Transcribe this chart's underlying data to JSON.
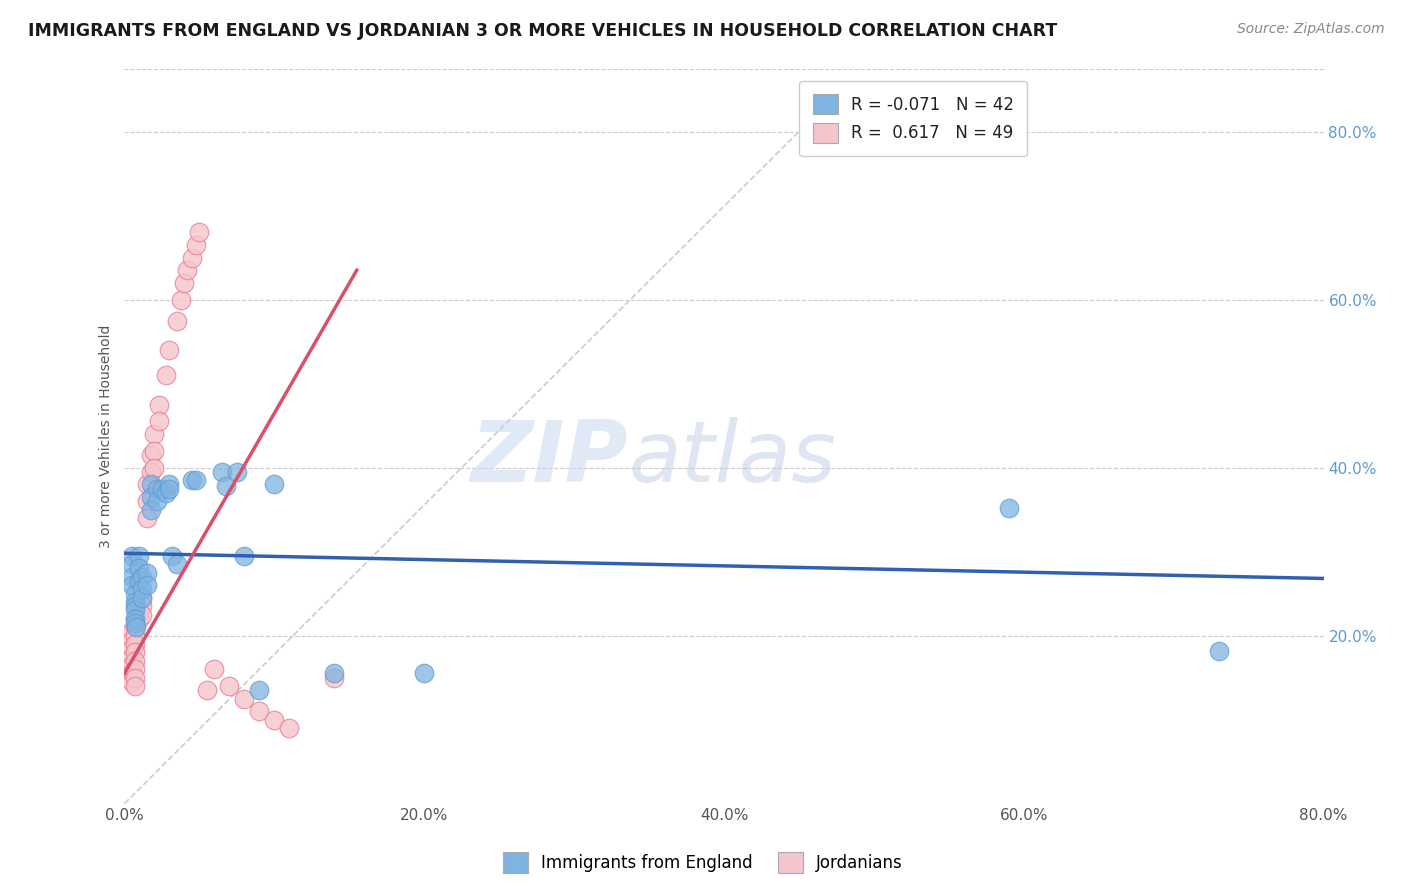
{
  "title": "IMMIGRANTS FROM ENGLAND VS JORDANIAN 3 OR MORE VEHICLES IN HOUSEHOLD CORRELATION CHART",
  "source": "Source: ZipAtlas.com",
  "ylabel": "3 or more Vehicles in Household",
  "xlim": [
    0.0,
    0.8
  ],
  "ylim": [
    0.0,
    0.875
  ],
  "xtick_labels": [
    "0.0%",
    "20.0%",
    "40.0%",
    "60.0%",
    "80.0%"
  ],
  "xtick_vals": [
    0.0,
    0.2,
    0.4,
    0.6,
    0.8
  ],
  "ytick_labels": [
    "20.0%",
    "40.0%",
    "60.0%",
    "80.0%"
  ],
  "ytick_vals": [
    0.2,
    0.4,
    0.6,
    0.8
  ],
  "legend_label1": "R = -0.071   N = 42",
  "legend_label2": "R =  0.617   N = 49",
  "england_scatter": [
    [
      0.005,
      0.295
    ],
    [
      0.005,
      0.285
    ],
    [
      0.005,
      0.27
    ],
    [
      0.005,
      0.26
    ],
    [
      0.007,
      0.25
    ],
    [
      0.007,
      0.24
    ],
    [
      0.007,
      0.235
    ],
    [
      0.007,
      0.23
    ],
    [
      0.007,
      0.22
    ],
    [
      0.007,
      0.215
    ],
    [
      0.008,
      0.21
    ],
    [
      0.01,
      0.295
    ],
    [
      0.01,
      0.28
    ],
    [
      0.01,
      0.265
    ],
    [
      0.012,
      0.27
    ],
    [
      0.012,
      0.255
    ],
    [
      0.012,
      0.245
    ],
    [
      0.015,
      0.275
    ],
    [
      0.015,
      0.26
    ],
    [
      0.018,
      0.38
    ],
    [
      0.018,
      0.365
    ],
    [
      0.018,
      0.35
    ],
    [
      0.022,
      0.375
    ],
    [
      0.022,
      0.36
    ],
    [
      0.025,
      0.375
    ],
    [
      0.028,
      0.37
    ],
    [
      0.03,
      0.38
    ],
    [
      0.03,
      0.375
    ],
    [
      0.032,
      0.295
    ],
    [
      0.035,
      0.285
    ],
    [
      0.045,
      0.385
    ],
    [
      0.048,
      0.385
    ],
    [
      0.065,
      0.395
    ],
    [
      0.068,
      0.378
    ],
    [
      0.075,
      0.395
    ],
    [
      0.08,
      0.295
    ],
    [
      0.09,
      0.135
    ],
    [
      0.1,
      0.38
    ],
    [
      0.14,
      0.155
    ],
    [
      0.2,
      0.155
    ],
    [
      0.59,
      0.352
    ],
    [
      0.73,
      0.182
    ]
  ],
  "england_line_x": [
    0.0,
    0.8
  ],
  "england_line_y": [
    0.298,
    0.268
  ],
  "jordan_scatter": [
    [
      0.005,
      0.205
    ],
    [
      0.005,
      0.195
    ],
    [
      0.005,
      0.185
    ],
    [
      0.005,
      0.175
    ],
    [
      0.005,
      0.165
    ],
    [
      0.005,
      0.155
    ],
    [
      0.005,
      0.145
    ],
    [
      0.007,
      0.22
    ],
    [
      0.007,
      0.21
    ],
    [
      0.007,
      0.2
    ],
    [
      0.007,
      0.19
    ],
    [
      0.007,
      0.18
    ],
    [
      0.007,
      0.17
    ],
    [
      0.007,
      0.16
    ],
    [
      0.007,
      0.15
    ],
    [
      0.007,
      0.14
    ],
    [
      0.01,
      0.24
    ],
    [
      0.01,
      0.23
    ],
    [
      0.01,
      0.22
    ],
    [
      0.012,
      0.245
    ],
    [
      0.012,
      0.235
    ],
    [
      0.012,
      0.225
    ],
    [
      0.015,
      0.38
    ],
    [
      0.015,
      0.36
    ],
    [
      0.015,
      0.34
    ],
    [
      0.018,
      0.415
    ],
    [
      0.018,
      0.395
    ],
    [
      0.02,
      0.44
    ],
    [
      0.02,
      0.42
    ],
    [
      0.02,
      0.4
    ],
    [
      0.023,
      0.475
    ],
    [
      0.023,
      0.455
    ],
    [
      0.028,
      0.51
    ],
    [
      0.03,
      0.54
    ],
    [
      0.035,
      0.575
    ],
    [
      0.038,
      0.6
    ],
    [
      0.04,
      0.62
    ],
    [
      0.042,
      0.635
    ],
    [
      0.045,
      0.65
    ],
    [
      0.048,
      0.665
    ],
    [
      0.05,
      0.68
    ],
    [
      0.055,
      0.135
    ],
    [
      0.06,
      0.16
    ],
    [
      0.07,
      0.14
    ],
    [
      0.08,
      0.125
    ],
    [
      0.09,
      0.11
    ],
    [
      0.1,
      0.1
    ],
    [
      0.11,
      0.09
    ],
    [
      0.14,
      0.15
    ]
  ],
  "jordan_line_x": [
    0.0,
    0.155
  ],
  "jordan_line_y": [
    0.155,
    0.635
  ],
  "ref_line_x": [
    0.0,
    0.45
  ],
  "ref_line_y": [
    0.0,
    0.8
  ],
  "watermark_zip": "ZIP",
  "watermark_atlas": "atlas",
  "england_color": "#7fb3e0",
  "england_edge_color": "#5b9bd5",
  "england_line_color": "#3060b0",
  "jordan_fill_color": "#f5c5cc",
  "jordan_edge_color": "#e87b8e",
  "jordan_line_color": "#d9506a",
  "background_color": "#ffffff",
  "grid_color": "#cccccc",
  "right_tick_color": "#5b9bd5"
}
